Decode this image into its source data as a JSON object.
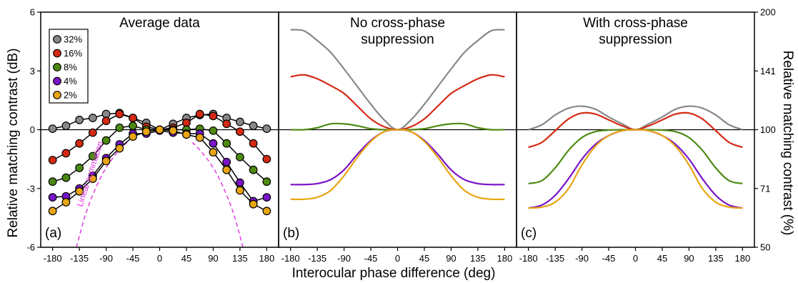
{
  "chart_data": {
    "type": "line",
    "xlabel": "Interocular phase difference (deg)",
    "ylabel_left": "Relative matching contrast (dB)",
    "ylabel_right": "Relative matching contrast (%)",
    "xlim": [
      -200,
      200
    ],
    "ylim": [
      -6,
      6
    ],
    "x_ticks": [
      "-180",
      "-135",
      "-90",
      "-45",
      "0",
      "45",
      "90",
      "135",
      "180"
    ],
    "y_ticks_left": [
      "-6",
      "-3",
      "0",
      "3",
      "6"
    ],
    "y_ticks_right": [
      "50",
      "71",
      "100",
      "141",
      "200"
    ],
    "y_ticks_right_db": [
      -6,
      -3,
      0,
      3,
      6
    ],
    "series_colors": {
      "32%": "#888888",
      "16%": "#d42a14",
      "8%": "#4d8a12",
      "4%": "#7a14c8",
      "2%": "#e8a514"
    },
    "panels": [
      {
        "letter": "(a)",
        "title_lines": [
          "Average data"
        ],
        "legend": [
          "32%",
          "16%",
          "8%",
          "4%",
          "2%"
        ],
        "annotation": "Linear summation",
        "x": [
          -180,
          -157.5,
          -135,
          -112.5,
          -90,
          -67.5,
          -45,
          -22.5,
          0,
          22.5,
          45,
          67.5,
          90,
          112.5,
          135,
          157.5,
          180
        ],
        "series": [
          {
            "name": "32%",
            "values": [
              0.05,
              0.2,
              0.5,
              0.6,
              0.8,
              0.85,
              0.6,
              0.35,
              0.0,
              0.3,
              0.6,
              0.75,
              0.8,
              0.6,
              0.4,
              0.2,
              0.05
            ]
          },
          {
            "name": "16%",
            "values": [
              -1.55,
              -1.2,
              -0.7,
              -0.15,
              0.45,
              0.8,
              0.6,
              0.15,
              0.0,
              0.1,
              0.35,
              0.8,
              0.7,
              0.3,
              -0.1,
              -0.7,
              -1.5
            ]
          },
          {
            "name": "8%",
            "values": [
              -2.65,
              -2.45,
              -1.95,
              -1.35,
              -0.55,
              0.1,
              0.2,
              0.0,
              0.0,
              0.0,
              0.0,
              0.05,
              -0.05,
              -0.7,
              -1.4,
              -2.05,
              -2.65
            ]
          },
          {
            "name": "4%",
            "values": [
              -3.45,
              -3.4,
              -3.0,
              -2.35,
              -1.45,
              -0.75,
              -0.2,
              -0.2,
              -0.05,
              -0.15,
              -0.2,
              -0.2,
              -0.7,
              -1.65,
              -2.7,
              -3.65,
              -3.45
            ]
          },
          {
            "name": "2%",
            "values": [
              -4.15,
              -3.7,
              -3.15,
              -2.5,
              -1.6,
              -0.95,
              -0.35,
              -0.1,
              0.0,
              -0.05,
              -0.25,
              -0.4,
              -1.15,
              -2.05,
              -3.1,
              -3.8,
              -4.15
            ]
          }
        ],
        "linear_summation": {
          "x": [
            -140,
            -125,
            -110,
            -95,
            -80,
            -65,
            -55
          ],
          "values": [
            -6.0,
            -4.35,
            -3.15,
            -2.2,
            -1.5,
            -0.95,
            -0.65
          ]
        }
      },
      {
        "letter": "(b)",
        "title_lines": [
          "No cross-phase",
          "suppression"
        ],
        "x": [
          -180,
          -157.5,
          -135,
          -112.5,
          -90,
          -67.5,
          -45,
          -22.5,
          0,
          22.5,
          45,
          67.5,
          90,
          112.5,
          135,
          157.5,
          180
        ],
        "series": [
          {
            "name": "32%",
            "values": [
              5.1,
              5.05,
              4.55,
              3.95,
              3.1,
              2.2,
              1.3,
              0.5,
              0.0,
              0.5,
              1.3,
              2.2,
              3.1,
              3.95,
              4.55,
              5.05,
              5.1
            ]
          },
          {
            "name": "16%",
            "values": [
              2.7,
              2.8,
              2.6,
              2.25,
              1.85,
              1.2,
              0.55,
              0.15,
              0.0,
              0.15,
              0.55,
              1.2,
              1.85,
              2.25,
              2.6,
              2.8,
              2.7
            ]
          },
          {
            "name": "8%",
            "values": [
              0.0,
              0.0,
              0.1,
              0.3,
              0.3,
              0.2,
              0.05,
              0.0,
              0.0,
              0.0,
              0.05,
              0.2,
              0.3,
              0.3,
              0.1,
              0.0,
              0.0
            ]
          },
          {
            "name": "4%",
            "values": [
              -2.8,
              -2.8,
              -2.75,
              -2.55,
              -2.05,
              -1.25,
              -0.55,
              -0.1,
              0.0,
              -0.1,
              -0.55,
              -1.25,
              -2.05,
              -2.55,
              -2.75,
              -2.8,
              -2.8
            ]
          },
          {
            "name": "2%",
            "values": [
              -3.55,
              -3.55,
              -3.45,
              -3.1,
              -2.35,
              -1.4,
              -0.6,
              -0.1,
              0.0,
              -0.1,
              -0.6,
              -1.4,
              -2.35,
              -3.1,
              -3.45,
              -3.55,
              -3.55
            ]
          }
        ]
      },
      {
        "letter": "(c)",
        "title_lines": [
          "With cross-phase",
          "suppression"
        ],
        "x": [
          -180,
          -157.5,
          -135,
          -112.5,
          -90,
          -67.5,
          -45,
          -22.5,
          0,
          22.5,
          45,
          67.5,
          90,
          112.5,
          135,
          157.5,
          180
        ],
        "series": [
          {
            "name": "32%",
            "values": [
              0.0,
              0.25,
              0.75,
              1.1,
              1.2,
              1.05,
              0.65,
              0.3,
              0.0,
              0.3,
              0.65,
              1.05,
              1.2,
              1.1,
              0.75,
              0.25,
              0.0
            ]
          },
          {
            "name": "16%",
            "values": [
              -0.9,
              -0.65,
              -0.05,
              0.55,
              0.85,
              0.8,
              0.5,
              0.2,
              0.0,
              0.2,
              0.5,
              0.8,
              0.85,
              0.55,
              -0.05,
              -0.65,
              -0.9
            ]
          },
          {
            "name": "8%",
            "values": [
              -2.75,
              -2.6,
              -1.95,
              -1.05,
              -0.4,
              -0.1,
              -0.02,
              0.0,
              0.0,
              0.0,
              -0.02,
              -0.1,
              -0.4,
              -1.05,
              -1.95,
              -2.6,
              -2.75
            ]
          },
          {
            "name": "4%",
            "values": [
              -4.0,
              -3.85,
              -3.35,
              -2.5,
              -1.5,
              -0.75,
              -0.3,
              -0.05,
              0.0,
              -0.05,
              -0.3,
              -0.75,
              -1.5,
              -2.5,
              -3.35,
              -3.85,
              -4.0
            ]
          },
          {
            "name": "2%",
            "values": [
              -4.0,
              -3.95,
              -3.7,
              -3.0,
              -1.8,
              -0.85,
              -0.3,
              -0.05,
              0.0,
              -0.05,
              -0.3,
              -0.85,
              -1.8,
              -3.0,
              -3.7,
              -3.95,
              -4.0
            ]
          }
        ]
      }
    ]
  }
}
